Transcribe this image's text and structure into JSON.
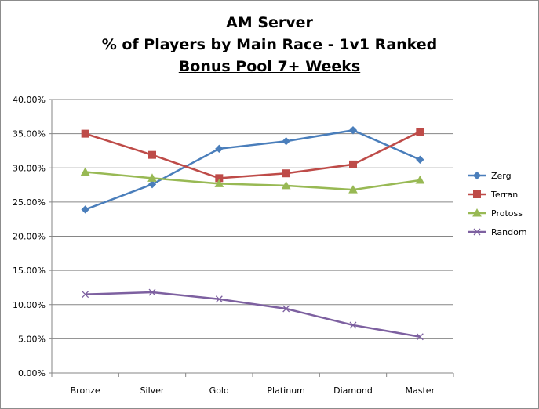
{
  "chart_data": {
    "type": "line",
    "title": [
      "AM Server",
      "% of Players by Main Race - 1v1 Ranked",
      "Bonus Pool 7+ Weeks"
    ],
    "xlabel": "",
    "ylabel": "",
    "categories": [
      "Bronze",
      "Silver",
      "Gold",
      "Platinum",
      "Diamond",
      "Master"
    ],
    "ylim": [
      0,
      40
    ],
    "yticks": [
      "0.00%",
      "5.00%",
      "10.00%",
      "15.00%",
      "20.00%",
      "25.00%",
      "30.00%",
      "35.00%",
      "40.00%"
    ],
    "grid": true,
    "legend_position": "right",
    "series": [
      {
        "name": "Zerg",
        "color": "#4a7ebb",
        "marker": "diamond",
        "values": [
          23.9,
          27.6,
          32.8,
          33.9,
          35.5,
          31.2
        ]
      },
      {
        "name": "Terran",
        "color": "#be4b48",
        "marker": "square",
        "values": [
          35.0,
          31.9,
          28.5,
          29.2,
          30.5,
          35.3
        ]
      },
      {
        "name": "Protoss",
        "color": "#98b954",
        "marker": "triangle",
        "values": [
          29.4,
          28.5,
          27.7,
          27.4,
          26.8,
          28.2
        ]
      },
      {
        "name": "Random",
        "color": "#7d60a0",
        "marker": "x",
        "values": [
          11.5,
          11.8,
          10.8,
          9.4,
          7.0,
          5.3
        ]
      }
    ]
  }
}
